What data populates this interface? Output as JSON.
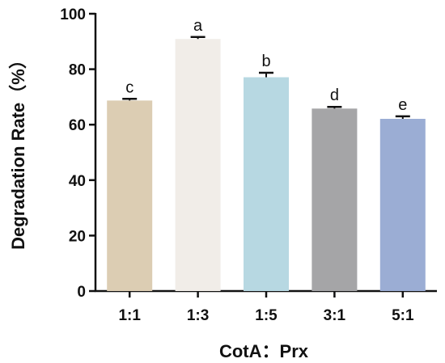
{
  "chart_data": {
    "type": "bar",
    "categories": [
      "1:1",
      "1:3",
      "1:5",
      "3:1",
      "5:1"
    ],
    "values": [
      68.7,
      90.9,
      77.1,
      65.8,
      62.1
    ],
    "errors": [
      0.6,
      0.7,
      1.6,
      0.6,
      0.9
    ],
    "significance": [
      "c",
      "a",
      "b",
      "d",
      "e"
    ],
    "colors": [
      "#dccdb3",
      "#f1ede8",
      "#b7d8e2",
      "#a5a5a7",
      "#9badd4"
    ],
    "xlabel": "CotA：Prx",
    "ylabel": "Degradation Rate（%）",
    "ylim": [
      0,
      100
    ],
    "yticks": [
      0,
      20,
      40,
      60,
      80,
      100
    ],
    "grid": false
  }
}
